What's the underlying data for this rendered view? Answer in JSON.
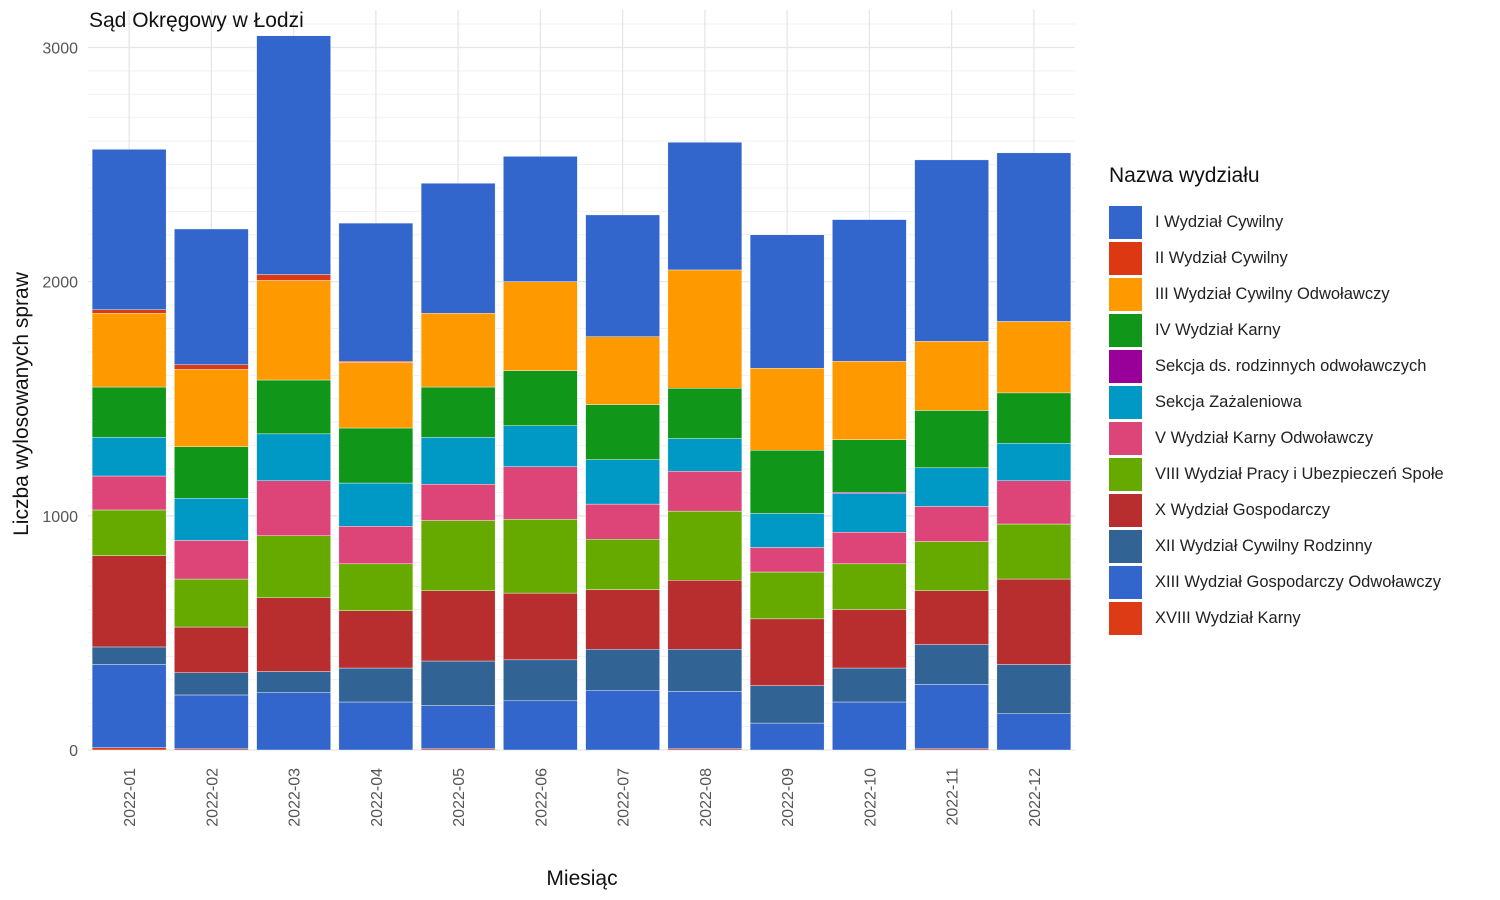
{
  "chart_data": {
    "type": "bar",
    "stacked": true,
    "title": "Sąd Okręgowy w Łodzi",
    "xlabel": "Miesiąc",
    "ylabel": "Liczba wylosowanych spraw",
    "ylim": [
      0,
      3160
    ],
    "yticks": [
      0,
      1000,
      2000,
      3000
    ],
    "grid": true,
    "legend_title": "Nazwa wydziału",
    "legend_position": "right",
    "categories": [
      "2022-01",
      "2022-02",
      "2022-03",
      "2022-04",
      "2022-05",
      "2022-06",
      "2022-07",
      "2022-08",
      "2022-09",
      "2022-10",
      "2022-11",
      "2022-12"
    ],
    "series": [
      {
        "name": "XVIII Wydział Karny",
        "color": "#dd3b16",
        "values": [
          10,
          5,
          0,
          0,
          5,
          0,
          0,
          5,
          0,
          0,
          5,
          0
        ]
      },
      {
        "name": "XIII Wydział Gospodarczy Odwoławczy",
        "color": "#3366cc",
        "values": [
          355,
          230,
          245,
          205,
          185,
          210,
          255,
          245,
          115,
          205,
          275,
          155
        ]
      },
      {
        "name": "XII Wydział Cywilny Rodzinny",
        "color": "#316395",
        "values": [
          75,
          95,
          90,
          145,
          190,
          175,
          175,
          180,
          160,
          145,
          170,
          210
        ]
      },
      {
        "name": "X Wydział Gospodarczy",
        "color": "#b82e2e",
        "values": [
          390,
          195,
          315,
          245,
          300,
          285,
          255,
          295,
          285,
          250,
          230,
          365
        ]
      },
      {
        "name": "VIII Wydział Pracy i Ubezpieczeń Społe",
        "color": "#66aa00",
        "values": [
          195,
          205,
          265,
          200,
          300,
          315,
          215,
          295,
          200,
          195,
          210,
          235
        ]
      },
      {
        "name": "V Wydział Karny Odwoławczy",
        "color": "#dd4477",
        "values": [
          145,
          165,
          235,
          160,
          155,
          225,
          150,
          170,
          105,
          135,
          150,
          185
        ]
      },
      {
        "name": "Sekcja Zażaleniowa",
        "color": "#0099c6",
        "values": [
          165,
          180,
          200,
          185,
          200,
          175,
          190,
          140,
          145,
          165,
          165,
          160
        ]
      },
      {
        "name": "Sekcja ds. rodzinnych odwoławczych",
        "color": "#990099",
        "values": [
          0,
          0,
          0,
          0,
          0,
          0,
          0,
          0,
          0,
          5,
          0,
          0
        ]
      },
      {
        "name": "IV Wydział Karny",
        "color": "#109618",
        "values": [
          215,
          220,
          230,
          235,
          215,
          235,
          235,
          215,
          270,
          225,
          245,
          215
        ]
      },
      {
        "name": "III Wydział Cywilny Odwoławczy",
        "color": "#ff9900",
        "values": [
          315,
          330,
          425,
          280,
          315,
          380,
          290,
          505,
          350,
          335,
          295,
          305
        ]
      },
      {
        "name": "II Wydział Cywilny",
        "color": "#dc3912",
        "values": [
          15,
          20,
          25,
          5,
          0,
          0,
          0,
          0,
          0,
          0,
          0,
          0
        ]
      },
      {
        "name": "I Wydział Cywilny",
        "color": "#3366cc",
        "values": [
          685,
          580,
          1020,
          590,
          555,
          535,
          520,
          545,
          570,
          605,
          775,
          720
        ]
      }
    ]
  }
}
